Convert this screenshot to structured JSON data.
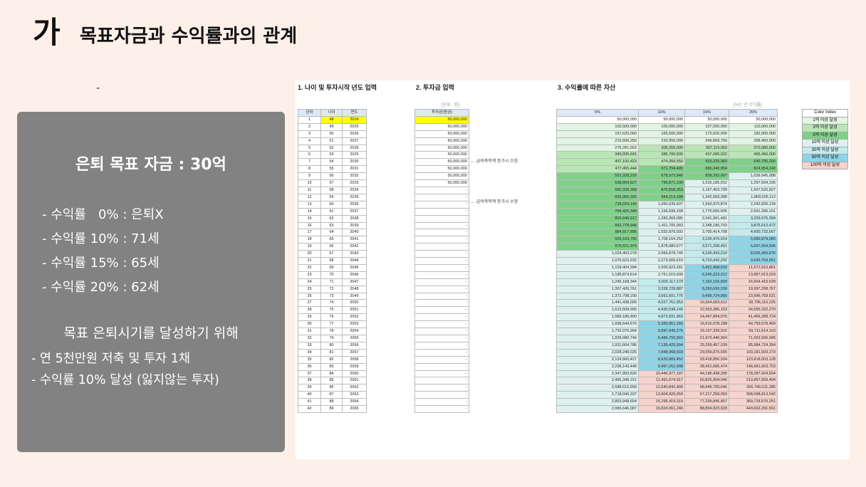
{
  "title": {
    "mark": "가",
    "text": "목표자금과 수익률과의 관계"
  },
  "dash": "-",
  "panel": {
    "goal": "은퇴 목표 자금 : 30억",
    "rates": [
      "- 수익률   0% : 은퇴X",
      "- 수익률 10% : 71세",
      "- 수익률 15% : 65세",
      "- 수익률 20% : 62세"
    ],
    "plan_title": "목표 은퇴시기를 달성하기 위해",
    "plan": [
      "- 연 5천만원 저축 및 투자 1채",
      "- 수익률 10% 달성 (잃지않는 투자)"
    ]
  },
  "sheet": {
    "section1": "1. 나이 및 투자시작 년도 입력",
    "section2": "2. 투자금 입력",
    "section3": "3. 수익률에 따른 자산",
    "unit_left": "[단위 : 원]",
    "unit_right": "[%는 년 수익률]",
    "headers_left": [
      "년차",
      "나이",
      "연도"
    ],
    "header_invest": "투자금(원금)",
    "headers_returns": [
      "5%",
      "10%",
      "15%",
      "20%"
    ],
    "notes": [
      "← 급여축적액 증가시 수정",
      "← 급여축적액 증가시 수정"
    ],
    "invest": [
      "50,000,000",
      "50,000,000",
      "50,000,000",
      "50,000,000",
      "50,000,000",
      "50,000,000",
      "50,000,000",
      "50,000,000",
      "50,000,000",
      "50,000,000",
      "-",
      "-",
      "-",
      "-",
      "-",
      "-",
      "-",
      "-",
      "-",
      "-",
      "-",
      "-",
      "-",
      "-",
      "-",
      "-",
      "-",
      "-",
      "-",
      "-",
      "-",
      "-",
      "-",
      "-",
      "-",
      "-",
      "-",
      "-",
      "-",
      "-",
      "-",
      "-"
    ],
    "r5": [
      "50,000,000",
      "102,500,000",
      "157,625,000",
      "215,506,250",
      "276,281,563",
      "340,095,641",
      "407,100,423",
      "477,455,444",
      "551,328,216",
      "628,894,627",
      "660,339,358",
      "693,356,326",
      "728,024,142",
      "764,425,349",
      "802,646,617",
      "842,778,948",
      "884,917,895",
      "929,163,790",
      "975,621,979",
      "1,024,403,078",
      "1,075,623,232",
      "1,129,404,394",
      "1,185,874,614",
      "1,245,168,344",
      "1,307,426,761",
      "1,372,798,100",
      "1,441,438,005",
      "1,513,509,905",
      "1,589,185,400",
      "1,668,644,670",
      "1,752,076,904",
      "1,839,680,749",
      "1,931,664,786",
      "2,028,248,025",
      "2,129,660,427",
      "2,236,143,448",
      "2,347,950,620",
      "2,465,348,151",
      "2,588,615,559",
      "2,718,046,337",
      "2,853,948,654",
      "2,996,646,087"
    ],
    "r10": [
      "50,000,000",
      "105,000,000",
      "165,500,000",
      "232,050,000",
      "305,255,000",
      "385,780,500",
      "474,358,550",
      "571,794,405",
      "678,973,846",
      "796,871,230",
      "876,558,353",
      "964,214,188",
      "1,060,635,607",
      "1,166,699,168",
      "1,283,369,085",
      "1,411,705,993",
      "1,552,876,592",
      "1,708,164,252",
      "1,878,980,677",
      "2,066,878,745",
      "2,273,566,619",
      "2,500,923,281",
      "2,751,015,609",
      "3,026,117,170",
      "3,328,728,887",
      "3,661,601,776",
      "4,027,761,953",
      "4,430,538,149",
      "4,873,591,963",
      "5,360,951,160",
      "5,897,046,276",
      "6,486,750,903",
      "7,135,425,994",
      "7,848,968,593",
      "8,633,865,452",
      "9,497,251,998",
      "10,446,977,197",
      "11,491,674,917",
      "12,640,842,409",
      "13,904,926,650",
      "15,295,419,315",
      "16,824,961,246"
    ],
    "r15": [
      "50,000,000",
      "107,500,000",
      "173,625,000",
      "249,668,750",
      "337,119,063",
      "437,686,922",
      "553,339,960",
      "686,340,954",
      "839,292,097",
      "1,015,185,912",
      "1,167,463,799",
      "1,342,583,368",
      "1,543,970,874",
      "1,775,566,505",
      "2,041,901,481",
      "2,348,186,703",
      "2,700,414,708",
      "3,105,476,914",
      "3,571,298,451",
      "4,106,993,219",
      "4,723,042,202",
      "5,431,498,532",
      "6,246,223,312",
      "7,183,156,809",
      "8,260,630,330",
      "9,499,724,880",
      "10,924,683,612",
      "12,563,386,153",
      "14,447,894,076",
      "16,615,078,188",
      "19,107,339,916",
      "21,973,440,904",
      "25,269,457,039",
      "29,059,875,595",
      "33,418,856,934",
      "38,431,685,474",
      "44,196,438,295",
      "50,825,904,040",
      "58,449,789,646",
      "67,217,258,093",
      "77,299,846,807",
      "88,894,823,828"
    ],
    "r20": [
      "50,000,000",
      "110,000,000",
      "182,000,000",
      "268,400,000",
      "372,080,000",
      "496,496,000",
      "645,795,200",
      "824,954,240",
      "1,039,945,088",
      "1,297,934,106",
      "1,557,520,927",
      "1,869,025,112",
      "2,242,830,134",
      "2,691,396,161",
      "3,229,675,394",
      "3,875,610,472",
      "4,650,732,567",
      "5,580,879,080",
      "6,697,054,896",
      "8,036,465,876",
      "9,643,759,051",
      "11,572,510,861",
      "13,887,013,033",
      "16,664,415,639",
      "19,997,298,767",
      "23,996,758,521",
      "28,796,110,225",
      "34,555,332,270",
      "41,466,398,724",
      "49,759,678,469",
      "59,711,614,163",
      "71,653,936,995",
      "85,984,724,394",
      "103,181,669,273",
      "123,818,003,128",
      "148,581,603,753",
      "178,297,924,504",
      "213,957,509,404",
      "256,749,011,285",
      "308,098,813,542",
      "369,718,576,251",
      "443,662,291,501"
    ],
    "color_index": {
      "header": "Color Index",
      "items": [
        {
          "label": "1억 이상 달성",
          "color": "#e2f4e2"
        },
        {
          "label": "3억 이상 달성",
          "color": "#b9e6b4"
        },
        {
          "label": "5억 이상 달성",
          "color": "#7fd189"
        },
        {
          "label": "10억 이상 달성",
          "color": "#dff1ee"
        },
        {
          "label": "30억 이상 달성",
          "color": "#c3ebee"
        },
        {
          "label": "50억 이상 달성",
          "color": "#8fd4e6"
        },
        {
          "label": "100억 이상 달성",
          "color": "#f6d3cd"
        }
      ]
    }
  }
}
